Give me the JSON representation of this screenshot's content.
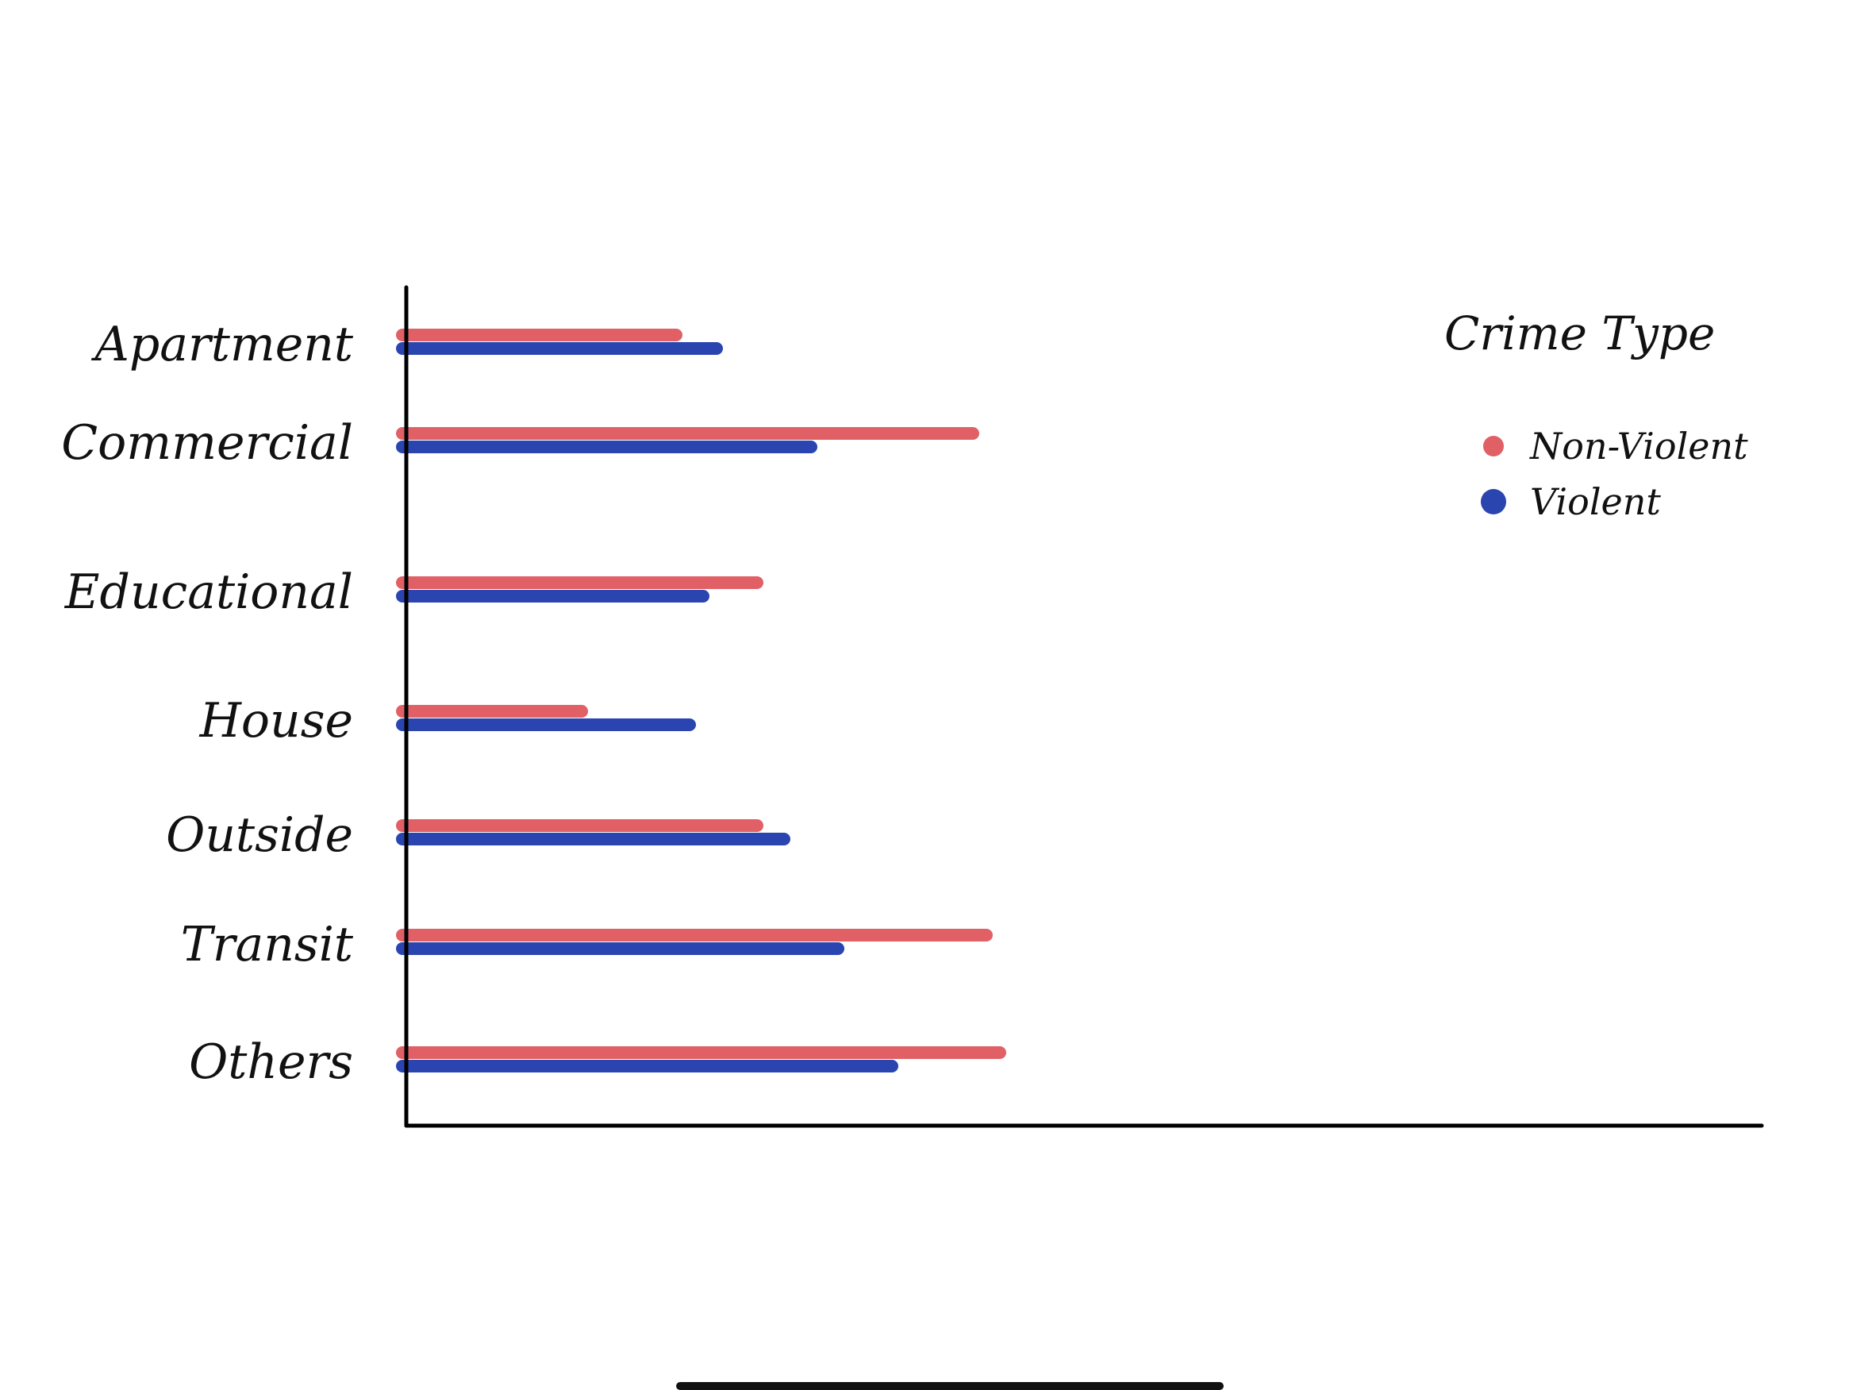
{
  "chart_data": {
    "type": "bar",
    "orientation": "horizontal",
    "categories": [
      "Apartment",
      "Commercial",
      "Educational",
      "House",
      "Outside",
      "Transit",
      "Others"
    ],
    "series": [
      {
        "name": "Non-Violent",
        "color": "#e06066",
        "values": [
          20,
          42,
          26,
          13,
          26,
          43,
          44
        ]
      },
      {
        "name": "Violent",
        "color": "#2a45b0",
        "values": [
          23,
          30,
          22,
          21,
          28,
          32,
          36
        ]
      }
    ],
    "title": "",
    "xlabel": "",
    "ylabel": "",
    "xlim": [
      0,
      100
    ],
    "legend": {
      "title": "Crime Type",
      "position": "top-right"
    },
    "grid": false,
    "ticks": false
  }
}
